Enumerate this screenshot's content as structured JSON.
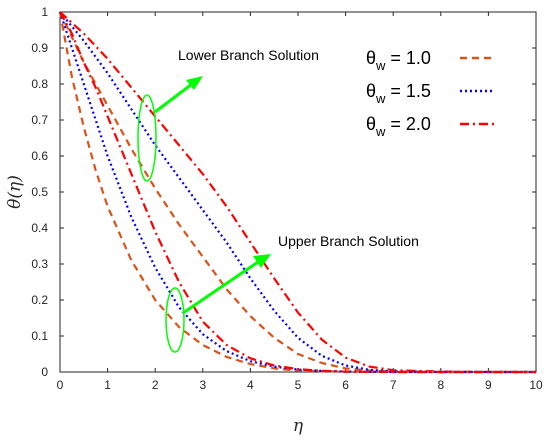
{
  "chart_data": {
    "type": "line",
    "xlabel": "η",
    "ylabel": "θ(η)",
    "xlim": [
      0,
      10
    ],
    "ylim": [
      0,
      1
    ],
    "x_ticks": [
      0,
      1,
      2,
      3,
      4,
      5,
      6,
      7,
      8,
      9,
      10
    ],
    "y_ticks": [
      0,
      0.1,
      0.2,
      0.3,
      0.4,
      0.5,
      0.6,
      0.7,
      0.8,
      0.9,
      1
    ],
    "legend_placement": "top-right",
    "legend": [
      {
        "label_main": "θ",
        "label_sub": "w",
        "label_value": "= 1.0",
        "color": "#D95319",
        "style": "dashed"
      },
      {
        "label_main": "θ",
        "label_sub": "w",
        "label_value": "= 1.5",
        "color": "#0000FF",
        "style": "dotted"
      },
      {
        "label_main": "θ",
        "label_sub": "w",
        "label_value": "= 2.0",
        "color": "#FF0000",
        "style": "dashdot"
      }
    ],
    "annotations": {
      "lower": "Lower Branch Solution",
      "upper": "Upper Branch Solution",
      "arrow_color": "#00FF00"
    },
    "series": [
      {
        "branch": "lower",
        "theta_w": 1.0,
        "color": "#D95319",
        "style": "dashed",
        "x": [
          0,
          0.5,
          1,
          1.5,
          2,
          2.5,
          3,
          3.5,
          4,
          4.5,
          5,
          5.5,
          6,
          6.5,
          7,
          8,
          9,
          10
        ],
        "y": [
          1,
          0.86,
          0.74,
          0.62,
          0.51,
          0.41,
          0.32,
          0.23,
          0.155,
          0.095,
          0.05,
          0.025,
          0.01,
          0.004,
          0.001,
          0,
          0,
          0
        ]
      },
      {
        "branch": "lower",
        "theta_w": 1.5,
        "color": "#0000FF",
        "style": "dotted",
        "x": [
          0,
          0.5,
          1,
          1.5,
          2,
          2.5,
          3,
          3.5,
          4,
          4.5,
          5,
          5.5,
          6,
          6.5,
          7,
          8,
          9,
          10
        ],
        "y": [
          1,
          0.92,
          0.83,
          0.73,
          0.63,
          0.54,
          0.45,
          0.36,
          0.26,
          0.17,
          0.095,
          0.045,
          0.018,
          0.006,
          0.002,
          0,
          0,
          0
        ]
      },
      {
        "branch": "lower",
        "theta_w": 2.0,
        "color": "#FF0000",
        "style": "dashdot",
        "x": [
          0,
          0.5,
          1,
          1.5,
          2,
          2.5,
          3,
          3.5,
          4,
          4.5,
          5,
          5.5,
          6,
          6.5,
          7,
          8,
          9,
          10
        ],
        "y": [
          1,
          0.94,
          0.87,
          0.79,
          0.71,
          0.63,
          0.55,
          0.46,
          0.36,
          0.26,
          0.165,
          0.09,
          0.04,
          0.015,
          0.005,
          0.001,
          0,
          0
        ]
      },
      {
        "branch": "upper",
        "theta_w": 1.0,
        "color": "#D95319",
        "style": "dashed",
        "x": [
          0,
          0.25,
          0.5,
          0.75,
          1,
          1.5,
          2,
          2.5,
          3,
          3.5,
          4,
          4.5,
          5,
          5.5,
          6,
          7,
          8,
          10
        ],
        "y": [
          1,
          0.82,
          0.68,
          0.56,
          0.46,
          0.31,
          0.2,
          0.125,
          0.075,
          0.042,
          0.022,
          0.01,
          0.004,
          0.002,
          0.001,
          0,
          0,
          0
        ]
      },
      {
        "branch": "upper",
        "theta_w": 1.5,
        "color": "#0000FF",
        "style": "dotted",
        "x": [
          0,
          0.25,
          0.5,
          0.75,
          1,
          1.5,
          2,
          2.5,
          3,
          3.5,
          4,
          4.5,
          5,
          5.5,
          6,
          7,
          8,
          10
        ],
        "y": [
          1,
          0.9,
          0.8,
          0.7,
          0.6,
          0.43,
          0.29,
          0.18,
          0.105,
          0.058,
          0.03,
          0.015,
          0.007,
          0.003,
          0.001,
          0,
          0,
          0
        ]
      },
      {
        "branch": "upper",
        "theta_w": 2.0,
        "color": "#FF0000",
        "style": "dashdot",
        "x": [
          0,
          0.25,
          0.5,
          0.75,
          1,
          1.5,
          2,
          2.5,
          3,
          3.5,
          4,
          4.5,
          5,
          5.5,
          6,
          7,
          8,
          10
        ],
        "y": [
          1,
          0.94,
          0.86,
          0.79,
          0.71,
          0.55,
          0.39,
          0.25,
          0.14,
          0.075,
          0.038,
          0.018,
          0.008,
          0.003,
          0.001,
          0,
          0,
          0
        ]
      }
    ]
  }
}
